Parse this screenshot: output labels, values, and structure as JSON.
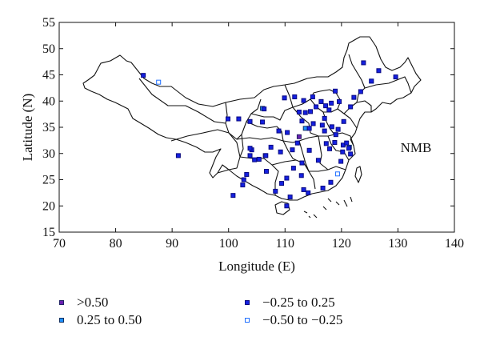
{
  "chart_data": {
    "type": "scatter",
    "title": "",
    "annotation": "NMB",
    "xlabel": "Longitude (E)",
    "ylabel": "Latitude (N)",
    "xlim": [
      70,
      140
    ],
    "ylim": [
      15,
      55
    ],
    "xticks": [
      70,
      80,
      90,
      100,
      110,
      120,
      130,
      140
    ],
    "yticks": [
      15,
      20,
      25,
      30,
      35,
      40,
      45,
      50,
      55
    ],
    "grid": false,
    "legend": {
      "placement": "bottom",
      "items": [
        {
          "label": ">0.50",
          "fill": "#6a1fb0",
          "stroke": "#222266"
        },
        {
          "label": "−0.25 to 0.25",
          "fill": "#1420e0",
          "stroke": "#0a0a80"
        },
        {
          "label": "0.25 to 0.50",
          "fill": "#1f90ff",
          "stroke": "#103060"
        },
        {
          "label": "−0.50 to −0.25",
          "fill": "#ffffff",
          "stroke": "#1f6fff"
        }
      ]
    },
    "series": [
      {
        "name": ">0.50",
        "points": [
          [
            112.5,
            33.2
          ],
          [
            106.5,
            29.6
          ]
        ]
      },
      {
        "name": "0.25 to 0.50",
        "points": [
          [
            106.0,
            38.6
          ],
          [
            113.6,
            34.8
          ],
          [
            116.4,
            39.9
          ],
          [
            121.4,
            31.2
          ]
        ]
      },
      {
        "name": "−0.50 to −0.25",
        "points": [
          [
            87.6,
            43.6
          ],
          [
            125.3,
            43.8
          ],
          [
            119.3,
            26.1
          ]
        ]
      },
      {
        "name": "−0.25 to 0.25",
        "points": [
          [
            84.9,
            44.9
          ],
          [
            91.1,
            29.6
          ],
          [
            99.9,
            36.6
          ],
          [
            101.8,
            36.6
          ],
          [
            103.8,
            36.1
          ],
          [
            106.3,
            38.5
          ],
          [
            106.0,
            36.0
          ],
          [
            108.9,
            34.3
          ],
          [
            110.4,
            34.0
          ],
          [
            111.7,
            40.8
          ],
          [
            109.9,
            40.6
          ],
          [
            112.5,
            37.9
          ],
          [
            113.0,
            36.2
          ],
          [
            113.6,
            37.8
          ],
          [
            114.5,
            38.0
          ],
          [
            114.9,
            40.8
          ],
          [
            116.4,
            39.9
          ],
          [
            117.2,
            39.1
          ],
          [
            118.2,
            39.6
          ],
          [
            119.6,
            39.9
          ],
          [
            121.6,
            38.9
          ],
          [
            123.4,
            41.8
          ],
          [
            122.2,
            40.7
          ],
          [
            125.3,
            43.8
          ],
          [
            126.6,
            45.8
          ],
          [
            123.9,
            47.3
          ],
          [
            129.6,
            44.6
          ],
          [
            117.0,
            36.7
          ],
          [
            120.4,
            36.1
          ],
          [
            118.8,
            32.1
          ],
          [
            120.3,
            31.6
          ],
          [
            120.2,
            30.3
          ],
          [
            121.6,
            29.9
          ],
          [
            117.3,
            31.9
          ],
          [
            115.9,
            28.7
          ],
          [
            114.3,
            30.6
          ],
          [
            113.0,
            28.2
          ],
          [
            112.9,
            25.8
          ],
          [
            113.3,
            23.1
          ],
          [
            114.1,
            22.5
          ],
          [
            110.3,
            25.3
          ],
          [
            108.3,
            22.8
          ],
          [
            110.3,
            20.0
          ],
          [
            106.7,
            26.6
          ],
          [
            102.7,
            25.0
          ],
          [
            104.1,
            30.7
          ],
          [
            103.8,
            29.6
          ],
          [
            105.4,
            28.9
          ],
          [
            104.6,
            28.8
          ],
          [
            103.8,
            31.0
          ],
          [
            106.6,
            29.6
          ],
          [
            107.5,
            31.2
          ],
          [
            109.2,
            30.3
          ],
          [
            111.3,
            30.7
          ],
          [
            112.2,
            32.0
          ],
          [
            113.3,
            40.1
          ],
          [
            115.0,
            35.7
          ],
          [
            117.0,
            34.3
          ],
          [
            118.3,
            35.1
          ],
          [
            116.6,
            35.4
          ],
          [
            119.0,
            33.6
          ],
          [
            120.9,
            32.0
          ],
          [
            119.9,
            28.5
          ],
          [
            118.1,
            24.5
          ],
          [
            116.7,
            23.4
          ],
          [
            110.9,
            21.7
          ],
          [
            109.4,
            24.3
          ],
          [
            102.5,
            24.0
          ],
          [
            100.8,
            22.0
          ],
          [
            103.2,
            26.0
          ],
          [
            111.5,
            27.2
          ],
          [
            117.9,
            30.9
          ],
          [
            115.5,
            38.9
          ],
          [
            117.8,
            38.3
          ],
          [
            118.9,
            41.9
          ],
          [
            114.3,
            34.8
          ],
          [
            119.4,
            34.6
          ],
          [
            121.3,
            31.0
          ]
        ]
      }
    ]
  }
}
